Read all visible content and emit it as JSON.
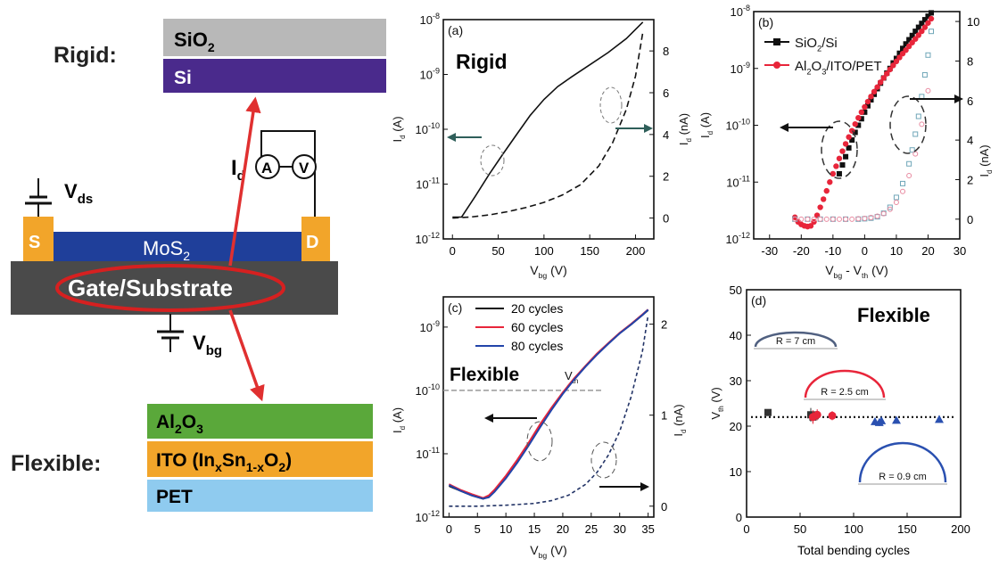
{
  "schematic": {
    "rigid_label": "Rigid:",
    "flexible_label": "Flexible:",
    "layers_rigid": [
      {
        "main": "SiO",
        "sub": "2",
        "tail": "",
        "color": "#b8b8b8",
        "text_color": "#1a1a1a"
      },
      {
        "main": "Si",
        "sub": "",
        "tail": "",
        "color": "#4a2a8c",
        "text_color": "#ffffff"
      }
    ],
    "layers_flexible": [
      {
        "main": "Al",
        "sub": "2",
        "tail": "O",
        "sub2": "3",
        "color": "#5aa83a",
        "text_color": "#1a1a1a"
      },
      {
        "main": "ITO (In",
        "sub": "x",
        "tail": "Sn",
        "sub2": "1-x",
        "tail2": "O",
        "sub3": "2",
        "tail3": ")",
        "color": "#f2a52a",
        "text_color": "#1a1a1a"
      },
      {
        "main": "PET",
        "sub": "",
        "tail": "",
        "color": "#8fcbef",
        "text_color": "#1a1a1a"
      }
    ],
    "channel": {
      "main": "MoS",
      "sub": "2"
    },
    "source": "S",
    "drain": "D",
    "gate": "Gate/Substrate",
    "vds": {
      "main": "V",
      "sub": "ds"
    },
    "vbg": {
      "main": "V",
      "sub": "bg"
    },
    "id_label": {
      "main": "I",
      "sub": "d"
    },
    "ammeter": "A",
    "voltmeter": "V",
    "colors": {
      "gate": "#4a4a4a",
      "channel": "#1f3f9a",
      "contact": "#f2a52a",
      "arrow": "#e03030",
      "ellipse": "#d62020"
    }
  },
  "panels": [
    {
      "id": "a",
      "tag": "(a)",
      "title": "Rigid",
      "xlabel": {
        "main": "V",
        "sub": "bg",
        "tail": " (V)"
      },
      "ylabel_left": {
        "main": "I",
        "sub": "d",
        "tail": " (A)"
      },
      "ylabel_right": {
        "main": "I",
        "sub": "d",
        "tail": " (nA)"
      },
      "x_ticks": [
        "0",
        "50",
        "100",
        "150",
        "200"
      ],
      "y_left_ticks": [
        {
          "m": "10",
          "e": "-12"
        },
        {
          "m": "10",
          "e": "-11"
        },
        {
          "m": "10",
          "e": "-10"
        },
        {
          "m": "10",
          "e": "-9"
        },
        {
          "m": "10",
          "e": "-8"
        }
      ],
      "y_right_ticks": [
        "0",
        "2",
        "4",
        "6",
        "8"
      ]
    },
    {
      "id": "b",
      "tag": "(b)",
      "xlabel": {
        "main": "V",
        "sub": "bg",
        "tail": " - V",
        "sub2": "th",
        "tail2": " (V)"
      },
      "ylabel_left": {
        "main": "I",
        "sub": "d",
        "tail": " (A)"
      },
      "ylabel_right": {
        "main": "I",
        "sub": "d",
        "tail": " (nA)"
      },
      "x_ticks": [
        "-30",
        "-20",
        "-10",
        "0",
        "10",
        "20",
        "30"
      ],
      "y_left_ticks": [
        {
          "m": "10",
          "e": "-12"
        },
        {
          "m": "10",
          "e": "-11"
        },
        {
          "m": "10",
          "e": "-10"
        },
        {
          "m": "10",
          "e": "-9"
        },
        {
          "m": "10",
          "e": "-8"
        }
      ],
      "y_right_ticks": [
        "0",
        "2",
        "4",
        "6",
        "8",
        "10"
      ],
      "legend": [
        {
          "name": "SiO2/Si",
          "main": "SiO",
          "sub": "2",
          "tail": "/Si",
          "color": "#111111"
        },
        {
          "name": "Al2O3/ITO/PET",
          "main": "Al",
          "sub": "2",
          "tail": "O",
          "sub2": "3",
          "tail2": "/ITO/PET",
          "color": "#e8253a"
        }
      ]
    },
    {
      "id": "c",
      "tag": "(c)",
      "title": "Flexible",
      "vth_label": {
        "main": "V",
        "sub": "th"
      },
      "xlabel": {
        "main": "V",
        "sub": "bg",
        "tail": " (V)"
      },
      "ylabel_left": {
        "main": "I",
        "sub": "d",
        "tail": " (A)"
      },
      "ylabel_right": {
        "main": "I",
        "sub": "d",
        "tail": " (nA)"
      },
      "x_ticks": [
        "0",
        "5",
        "10",
        "15",
        "20",
        "25",
        "30",
        "35"
      ],
      "y_left_ticks": [
        {
          "m": "10",
          "e": "-12"
        },
        {
          "m": "10",
          "e": "-11"
        },
        {
          "m": "10",
          "e": "-10"
        },
        {
          "m": "10",
          "e": "-9"
        }
      ],
      "y_right_ticks": [
        "0",
        "1",
        "2"
      ],
      "legend": [
        {
          "name": "20 cycles",
          "color": "#111111"
        },
        {
          "name": "60 cycles",
          "color": "#e8253a"
        },
        {
          "name": "80 cycles",
          "color": "#2244aa"
        }
      ]
    },
    {
      "id": "d",
      "tag": "(d)",
      "title": "Flexible",
      "xlabel": {
        "main": "Total bending cycles"
      },
      "ylabel_left": {
        "main": "V",
        "sub": "th",
        "tail": " (V)"
      },
      "x_ticks": [
        "0",
        "50",
        "100",
        "150",
        "200"
      ],
      "y_left_ticks": [
        "0",
        "10",
        "20",
        "30",
        "40",
        "50"
      ],
      "radii": [
        {
          "label": "R = 7 cm",
          "color": "#506080"
        },
        {
          "label": "R = 2.5 cm",
          "color": "#e8253a"
        },
        {
          "label": "R = 0.9 cm",
          "color": "#2a50b0"
        }
      ]
    }
  ],
  "chart_data": [
    {
      "type": "line",
      "panel": "a",
      "title": "Rigid",
      "xlabel": "Vbg (V)",
      "ylabel": "Id (A)",
      "ylabel_right": "Id (nA)",
      "xlim": [
        -10,
        220
      ],
      "ylim": [
        1e-12,
        1e-08
      ],
      "ylim_right": [
        -1,
        9.5
      ],
      "log_y": true,
      "series": [
        {
          "axis": "left",
          "style": "solid",
          "x": [
            0,
            10,
            25,
            40,
            55,
            70,
            85,
            100,
            115,
            130,
            150,
            170,
            190,
            208
          ],
          "y": [
            2.5e-12,
            2.5e-12,
            6e-12,
            1.5e-11,
            3.5e-11,
            8e-11,
            1.8e-10,
            3.5e-10,
            6e-10,
            9e-10,
            1.5e-09,
            2.5e-09,
            4.5e-09,
            9e-09
          ]
        },
        {
          "axis": "right",
          "style": "dashed",
          "x": [
            0,
            20,
            40,
            60,
            80,
            100,
            120,
            140,
            160,
            175,
            190,
            200,
            208
          ],
          "y": [
            0,
            0.05,
            0.15,
            0.3,
            0.5,
            0.75,
            1.1,
            1.6,
            2.5,
            3.6,
            5.2,
            6.8,
            8.9
          ]
        }
      ]
    },
    {
      "type": "scatter",
      "panel": "b",
      "xlabel": "Vbg - Vth (V)",
      "ylabel": "Id (A)",
      "ylabel_right": "Id (nA)",
      "xlim": [
        -35,
        30
      ],
      "ylim": [
        1e-12,
        1e-08
      ],
      "ylim_right": [
        -1,
        10.5
      ],
      "log_y": true,
      "series": [
        {
          "name": "SiO2/Si",
          "axis": "left",
          "marker": "square-filled",
          "x": [
            -8,
            -7,
            -6,
            -5,
            -4,
            -3,
            -2,
            -1,
            0,
            1,
            2,
            3,
            4,
            5,
            6,
            7,
            8,
            9,
            10,
            11,
            12,
            13,
            14,
            15,
            16,
            17,
            18,
            19,
            20,
            21
          ],
          "y": [
            1.4e-11,
            2e-11,
            2.8e-11,
            4e-11,
            5.5e-11,
            7.5e-11,
            1e-10,
            1.3e-10,
            1.7e-10,
            2.2e-10,
            2.8e-10,
            3.5e-10,
            4.4e-10,
            5.5e-10,
            6.8e-10,
            8.3e-10,
            1e-09,
            1.25e-09,
            1.5e-09,
            1.85e-09,
            2.25e-09,
            2.7e-09,
            3.2e-09,
            3.8e-09,
            4.5e-09,
            5.3e-09,
            6.2e-09,
            7.2e-09,
            8.3e-09,
            9.5e-09
          ]
        },
        {
          "name": "Al2O3/ITO/PET",
          "axis": "left",
          "marker": "circle-filled",
          "x": [
            -22,
            -21,
            -20,
            -19,
            -18,
            -17,
            -16,
            -15,
            -14,
            -13,
            -12,
            -11,
            -10,
            -9,
            -8,
            -7,
            -6,
            -5,
            -4,
            -3,
            -2,
            -1,
            0,
            1,
            2,
            3,
            4,
            5,
            6,
            7,
            8,
            9,
            10,
            11,
            12,
            13,
            14,
            15,
            16,
            17,
            18,
            19,
            20,
            21
          ],
          "y": [
            2.4e-12,
            2e-12,
            1.8e-12,
            1.7e-12,
            1.65e-12,
            1.7e-12,
            2e-12,
            2.6e-12,
            3.6e-12,
            5e-12,
            7e-12,
            1e-11,
            1.4e-11,
            1.9e-11,
            2.6e-11,
            3.5e-11,
            4.7e-11,
            6.2e-11,
            8e-11,
            1.05e-10,
            1.35e-10,
            1.7e-10,
            2.1e-10,
            2.6e-10,
            3.2e-10,
            3.9e-10,
            4.7e-10,
            5.7e-10,
            6.8e-10,
            8.1e-10,
            9.6e-10,
            1.13e-09,
            1.33e-09,
            1.56e-09,
            1.82e-09,
            2.1e-09,
            2.45e-09,
            2.85e-09,
            3.3e-09,
            3.85e-09,
            4.5e-09,
            5.3e-09,
            6.3e-09,
            7.5e-09
          ]
        },
        {
          "name": "SiO2/Si (nA)",
          "axis": "right",
          "marker": "square-open",
          "x": [
            -22,
            -18,
            -14,
            -10,
            -6,
            -2,
            0,
            2,
            4,
            6,
            8,
            10,
            12,
            14,
            15,
            16,
            17,
            18,
            19,
            20,
            21
          ],
          "y": [
            0,
            0,
            0,
            0,
            0,
            0,
            0.02,
            0.05,
            0.12,
            0.3,
            0.6,
            1.1,
            1.8,
            2.8,
            3.5,
            4.3,
            5.2,
            6.2,
            7.3,
            8.3,
            9.5
          ]
        },
        {
          "name": "Al2O3/ITO/PET (nA)",
          "axis": "right",
          "marker": "circle-open",
          "x": [
            -22,
            -20,
            -18,
            -16,
            -14,
            -12,
            -10,
            -8,
            -6,
            -4,
            -2,
            0,
            2,
            4,
            6,
            8,
            10,
            12,
            14,
            16,
            18,
            20
          ],
          "y": [
            0,
            0,
            0,
            0,
            0,
            0,
            0,
            0,
            0,
            0,
            0.02,
            0.04,
            0.08,
            0.15,
            0.28,
            0.5,
            0.85,
            1.4,
            2.2,
            3.3,
            4.8,
            6.5
          ]
        }
      ]
    },
    {
      "type": "line",
      "panel": "c",
      "title": "Flexible",
      "xlabel": "Vbg (V)",
      "ylabel": "Id (A)",
      "ylabel_right": "Id (nA)",
      "xlim": [
        -1,
        36
      ],
      "ylim": [
        1e-12,
        3e-09
      ],
      "ylim_right": [
        -0.12,
        2.3
      ],
      "log_y": true,
      "vth_level": 1e-10,
      "series": [
        {
          "name": "20 cycles",
          "axis": "left",
          "x": [
            0,
            2,
            4,
            6,
            7,
            8,
            10,
            12,
            14,
            16,
            18,
            20,
            22,
            24,
            26,
            28,
            30,
            32,
            34,
            35
          ],
          "y": [
            3.1e-12,
            2.6e-12,
            2.2e-12,
            1.95e-12,
            2.1e-12,
            2.6e-12,
            4.3e-12,
            7.5e-12,
            1.4e-11,
            2.7e-11,
            5e-11,
            9e-11,
            1.5e-10,
            2.4e-10,
            3.7e-10,
            5.5e-10,
            8e-10,
            1.1e-09,
            1.55e-09,
            1.85e-09
          ]
        },
        {
          "name": "60 cycles",
          "axis": "left",
          "x": [
            0,
            2,
            4,
            6,
            7,
            8,
            10,
            12,
            14,
            16,
            18,
            20,
            22,
            24,
            26,
            28,
            30,
            32,
            34,
            35
          ],
          "y": [
            3.3e-12,
            2.7e-12,
            2.3e-12,
            2e-12,
            2.2e-12,
            2.7e-12,
            4.5e-12,
            8e-12,
            1.5e-11,
            2.9e-11,
            5.3e-11,
            9.3e-11,
            1.55e-10,
            2.45e-10,
            3.8e-10,
            5.6e-10,
            8.1e-10,
            1.12e-09,
            1.58e-09,
            1.9e-09
          ]
        },
        {
          "name": "80 cycles",
          "axis": "left",
          "x": [
            0,
            2,
            4,
            6,
            7,
            8,
            10,
            12,
            14,
            16,
            18,
            20,
            22,
            24,
            26,
            28,
            30,
            32,
            34,
            35
          ],
          "y": [
            3.2e-12,
            2.6e-12,
            2.2e-12,
            1.95e-12,
            2.05e-12,
            2.5e-12,
            4.1e-12,
            7.2e-12,
            1.35e-11,
            2.6e-11,
            4.9e-11,
            8.8e-11,
            1.48e-10,
            2.38e-10,
            3.66e-10,
            5.45e-10,
            7.95e-10,
            1.1e-09,
            1.55e-09,
            1.88e-09
          ]
        },
        {
          "name": "Id (nA)",
          "axis": "right",
          "style": "dashed",
          "x": [
            0,
            5,
            10,
            15,
            18,
            21,
            24,
            26,
            28,
            30,
            32,
            34,
            35
          ],
          "y": [
            0,
            0,
            0.01,
            0.03,
            0.06,
            0.12,
            0.24,
            0.37,
            0.56,
            0.82,
            1.2,
            1.7,
            2.1
          ]
        }
      ]
    },
    {
      "type": "scatter",
      "panel": "d",
      "title": "Flexible",
      "xlabel": "Total bending cycles",
      "ylabel": "Vth (V)",
      "xlim": [
        0,
        200
      ],
      "ylim": [
        0,
        50
      ],
      "fit_level": 22,
      "series": [
        {
          "name": "R = 7 cm",
          "marker": "square",
          "color": "#333333",
          "x": [
            20,
            60,
            62,
            64
          ],
          "y": [
            23,
            22.5,
            22,
            22.3
          ],
          "yerr": [
            0.5,
            1.5,
            1.2,
            1.0
          ]
        },
        {
          "name": "R = 2.5 cm",
          "marker": "circle",
          "color": "#e8253a",
          "x": [
            62,
            66,
            80
          ],
          "y": [
            22,
            22.5,
            22.3
          ],
          "yerr": [
            1.5,
            1.2,
            1.0
          ]
        },
        {
          "name": "R = 0.9 cm",
          "marker": "triangle",
          "color": "#2a50b0",
          "x": [
            120,
            124,
            126,
            140,
            180
          ],
          "y": [
            21,
            20.8,
            21.2,
            21.3,
            21.5
          ],
          "yerr": [
            0.8,
            0.8,
            0.8,
            0.5,
            0.5
          ]
        }
      ]
    }
  ]
}
